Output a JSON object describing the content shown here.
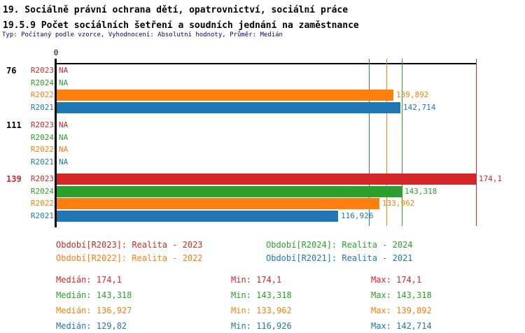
{
  "header": {
    "title1": "19. Sociálně právní ochrana dětí, opatrovnictví, sociální práce",
    "title2": "19.5.9 Počet sociálních šetření a soudních jednání na zaměstnance",
    "subtitle": "Typ: Počítaný podle vzorce, Vyhodnocení: Absolutní hodnoty, Průměr: Medián"
  },
  "colors": {
    "R2023": "#d62728",
    "R2024": "#2ca02c",
    "R2022": "#ff7f0e",
    "R2021": "#1f77b4",
    "axis": "#000000",
    "subtitle": "#00008b",
    "background": "#ffffff"
  },
  "chart_data": {
    "type": "bar",
    "orientation": "horizontal",
    "axis_zero_label": "0",
    "xlim": [
      0,
      174.1
    ],
    "grid": "vertical-median-lines",
    "series": [
      "R2023",
      "R2024",
      "R2022",
      "R2021"
    ],
    "median_lines": [
      {
        "series": "R2021",
        "value": 129.82
      },
      {
        "series": "R2022",
        "value": 136.927
      },
      {
        "series": "R2024",
        "value": 143.318
      },
      {
        "series": "R2023",
        "value": 174.1
      }
    ],
    "groups": [
      {
        "label": "76",
        "label_color": "#000000",
        "rows": [
          {
            "series": "R2023",
            "value": null,
            "display": "NA"
          },
          {
            "series": "R2024",
            "value": null,
            "display": "NA"
          },
          {
            "series": "R2022",
            "value": 139.892,
            "display": "139,892"
          },
          {
            "series": "R2021",
            "value": 142.714,
            "display": "142,714"
          }
        ]
      },
      {
        "label": "111",
        "label_color": "#000000",
        "rows": [
          {
            "series": "R2023",
            "value": null,
            "display": "NA"
          },
          {
            "series": "R2024",
            "value": null,
            "display": "NA"
          },
          {
            "series": "R2022",
            "value": null,
            "display": "NA"
          },
          {
            "series": "R2021",
            "value": null,
            "display": "NA"
          }
        ]
      },
      {
        "label": "139",
        "label_color": "#d62728",
        "rows": [
          {
            "series": "R2023",
            "value": 174.1,
            "display": "174,1"
          },
          {
            "series": "R2024",
            "value": 143.318,
            "display": "143,318"
          },
          {
            "series": "R2022",
            "value": 133.962,
            "display": "133,962"
          },
          {
            "series": "R2021",
            "value": 116.926,
            "display": "116,926"
          }
        ]
      }
    ]
  },
  "legend": {
    "items": [
      {
        "series": "R2023",
        "label": "Období[R2023]: Realita - 2023",
        "col": 0,
        "row": 0
      },
      {
        "series": "R2024",
        "label": "Období[R2024]: Realita - 2024",
        "col": 1,
        "row": 0
      },
      {
        "series": "R2022",
        "label": "Období[R2022]: Realita - 2022",
        "col": 0,
        "row": 1
      },
      {
        "series": "R2021",
        "label": "Období[R2021]: Realita - 2021",
        "col": 1,
        "row": 1
      }
    ]
  },
  "stats": {
    "labels": {
      "median": "Medián",
      "min": "Min",
      "max": "Max"
    },
    "rows": [
      {
        "series": "R2023",
        "median": "174,1",
        "min": "174,1",
        "max": "174,1"
      },
      {
        "series": "R2024",
        "median": "143,318",
        "min": "143,318",
        "max": "143,318"
      },
      {
        "series": "R2022",
        "median": "136,927",
        "min": "133,962",
        "max": "139,892"
      },
      {
        "series": "R2021",
        "median": "129,82",
        "min": "116,926",
        "max": "142,714"
      }
    ]
  }
}
